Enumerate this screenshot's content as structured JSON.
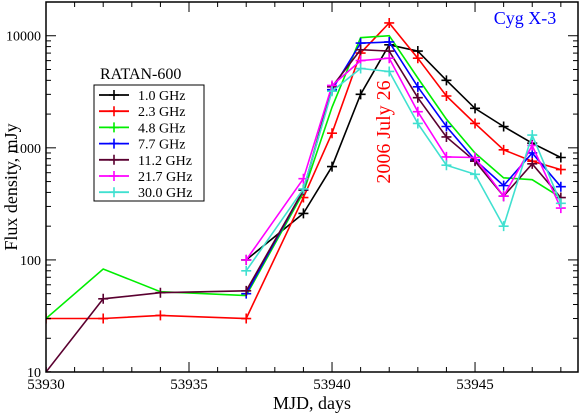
{
  "chart_data": {
    "type": "line",
    "title": "",
    "xlabel": "MJD, days",
    "ylabel": "Flux density, mJy",
    "xlim": [
      53930,
      53948.6
    ],
    "ylim": [
      10,
      20000
    ],
    "yscale": "log",
    "x_ticks": [
      {
        "value": 53930,
        "label": "53930"
      },
      {
        "value": 53935,
        "label": "53935"
      },
      {
        "value": 53940,
        "label": "53940"
      },
      {
        "value": 53945,
        "label": "53945"
      }
    ],
    "y_ticks": [
      {
        "value": 10,
        "label": "10"
      },
      {
        "value": 100,
        "label": "100"
      },
      {
        "value": 1000,
        "label": "1000"
      },
      {
        "value": 10000,
        "label": "10000"
      }
    ],
    "legend_title": "RATAN-600",
    "legend_position": "left",
    "source_label": "Cyg X-3",
    "event_annotation": "2006 July 26",
    "colors": {
      "source_label": "#0000ff",
      "event_annotation": "#ff0000",
      "axes": "#000000"
    },
    "series": [
      {
        "name": "1.0 GHz",
        "color": "#000000",
        "markers": true,
        "points": [
          [
            53937,
            100
          ],
          [
            53939,
            260
          ],
          [
            53940,
            680
          ],
          [
            53941,
            3000
          ],
          [
            53942,
            8300
          ],
          [
            53943,
            7300
          ],
          [
            53944,
            4000
          ],
          [
            53945,
            2250
          ],
          [
            53946,
            1550
          ],
          [
            53947,
            1100
          ],
          [
            53948,
            820
          ]
        ]
      },
      {
        "name": "2.3 GHz",
        "color": "#ff0000",
        "markers": true,
        "points": [
          [
            53930,
            30
          ],
          [
            53932,
            30
          ],
          [
            53934,
            32
          ],
          [
            53937,
            30
          ],
          [
            53939,
            360
          ],
          [
            53940,
            1350
          ],
          [
            53941,
            7000
          ],
          [
            53942,
            13000
          ],
          [
            53943,
            6300
          ],
          [
            53944,
            2900
          ],
          [
            53945,
            1650
          ],
          [
            53946,
            960
          ],
          [
            53947,
            760
          ],
          [
            53948,
            640
          ]
        ]
      },
      {
        "name": "4.8 GHz",
        "color": "#00ee00",
        "markers": false,
        "points": [
          [
            53930,
            30
          ],
          [
            53932,
            83
          ],
          [
            53934,
            52
          ],
          [
            53937,
            48
          ],
          [
            53939,
            400
          ],
          [
            53940,
            2300
          ],
          [
            53941,
            9600
          ],
          [
            53942,
            10000
          ],
          [
            53943,
            4200
          ],
          [
            53944,
            1800
          ],
          [
            53945,
            900
          ],
          [
            53946,
            540
          ],
          [
            53947,
            520
          ],
          [
            53948,
            360
          ]
        ]
      },
      {
        "name": "7.7 GHz",
        "color": "#0000ff",
        "markers": true,
        "points": [
          [
            53937,
            50
          ],
          [
            53939,
            420
          ],
          [
            53940,
            3300
          ],
          [
            53941,
            8600
          ],
          [
            53942,
            8800
          ],
          [
            53943,
            3500
          ],
          [
            53944,
            1550
          ],
          [
            53945,
            780
          ],
          [
            53946,
            460
          ],
          [
            53947,
            900
          ],
          [
            53948,
            450
          ]
        ]
      },
      {
        "name": "11.2 GHz",
        "color": "#5a0030",
        "markers": true,
        "points": [
          [
            53930,
            10
          ],
          [
            53932,
            45
          ],
          [
            53934,
            51
          ],
          [
            53937,
            53
          ],
          [
            53939,
            420
          ],
          [
            53940,
            3500
          ],
          [
            53941,
            7500
          ],
          [
            53942,
            7300
          ],
          [
            53943,
            2800
          ],
          [
            53944,
            1250
          ],
          [
            53945,
            760
          ],
          [
            53946,
            370
          ],
          [
            53947,
            720
          ],
          [
            53948,
            360
          ]
        ]
      },
      {
        "name": "21.7 GHz",
        "color": "#ff00ff",
        "markers": true,
        "points": [
          [
            53937,
            100
          ],
          [
            53939,
            530
          ],
          [
            53940,
            3600
          ],
          [
            53941,
            6000
          ],
          [
            53942,
            6300
          ],
          [
            53943,
            2100
          ],
          [
            53944,
            830
          ],
          [
            53945,
            820
          ],
          [
            53946,
            370
          ],
          [
            53947,
            1050
          ],
          [
            53948,
            290
          ]
        ]
      },
      {
        "name": "30.0 GHz",
        "color": "#40e0d0",
        "markers": true,
        "points": [
          [
            53937,
            80
          ],
          [
            53939,
            430
          ],
          [
            53940,
            3200
          ],
          [
            53941,
            5100
          ],
          [
            53942,
            4800
          ],
          [
            53943,
            1650
          ],
          [
            53944,
            700
          ],
          [
            53945,
            580
          ],
          [
            53946,
            200
          ],
          [
            53947,
            1300
          ],
          [
            53948,
            320
          ]
        ]
      }
    ]
  }
}
